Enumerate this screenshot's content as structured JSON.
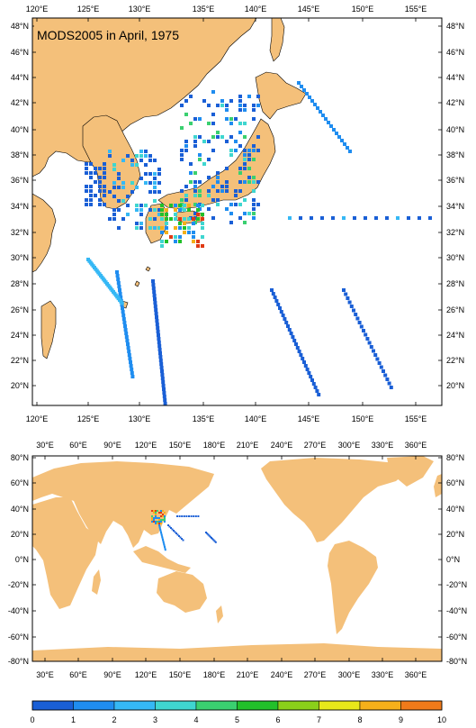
{
  "map_top": {
    "title": "MODS2005 in April, 1975",
    "lon_labels": [
      "120°E",
      "125°E",
      "130°E",
      "135°E",
      "140°E",
      "145°E",
      "150°E",
      "155°E"
    ],
    "lat_labels": [
      "20°N",
      "22°N",
      "24°N",
      "26°N",
      "28°N",
      "30°N",
      "32°N",
      "34°N",
      "36°N",
      "38°N",
      "40°N",
      "42°N",
      "44°N",
      "46°N",
      "48°N"
    ]
  },
  "map_bottom": {
    "lon_labels": [
      "30°E",
      "60°E",
      "90°E",
      "120°E",
      "150°E",
      "180°E",
      "210°E",
      "240°E",
      "270°E",
      "300°E",
      "330°E",
      "360°E"
    ],
    "lat_labels": [
      "-80°N",
      "-60°N",
      "-40°N",
      "-20°N",
      "0°N",
      "20°N",
      "40°N",
      "60°N",
      "80°N"
    ]
  },
  "colorbar": {
    "labels": [
      "0",
      "1",
      "2",
      "3",
      "4",
      "5",
      "6",
      "7",
      "8",
      "9",
      "10"
    ],
    "colors": [
      "#1a5fd6",
      "#1f8df0",
      "#35b8f5",
      "#3fd6d0",
      "#3ad070",
      "#22c02a",
      "#8ad01a",
      "#e8e81a",
      "#f5b01a",
      "#f07a1a",
      "#e03a14"
    ]
  },
  "colors": {
    "land": "#f4c07a",
    "ocean": "#ffffff",
    "frame": "#000000"
  }
}
